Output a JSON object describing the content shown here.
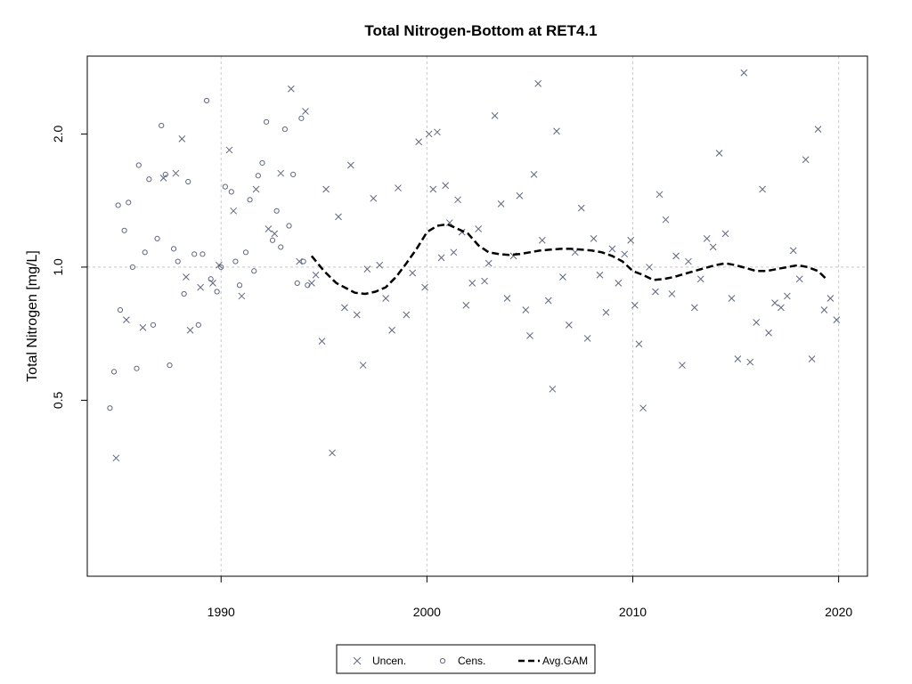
{
  "chart_data": {
    "type": "scatter",
    "title": "Total Nitrogen-Bottom at RET4.1",
    "xlabel": "",
    "ylabel": "Total Nitrogen [mg/L]",
    "xlim": [
      1983.5,
      2021.4
    ],
    "ylim": [
      0.2,
      3.0
    ],
    "y_scale": "log",
    "x_ticks": [
      1990,
      2000,
      2010,
      2020
    ],
    "x_tick_labels": [
      "1990",
      "2000",
      "2010",
      "2020"
    ],
    "y_ticks": [
      0.5,
      1.0,
      2.0
    ],
    "y_tick_labels": [
      "0.5",
      "1.0",
      "2.0"
    ],
    "grid": true,
    "legend": {
      "position": "bottom",
      "entries": [
        {
          "label": "Uncen.",
          "symbol": "x"
        },
        {
          "label": "Cens.",
          "symbol": "circle"
        },
        {
          "label": "Avg.GAM",
          "symbol": "dashed-line"
        }
      ]
    },
    "colors": {
      "points": "#606880",
      "gam": "#000000",
      "grid": "#c8c8c8",
      "axis": "#000000"
    },
    "series": [
      {
        "name": "Uncen.",
        "marker": "x",
        "x": [
          1984.9,
          1985.4,
          1986.2,
          1987.2,
          1987.8,
          1988.1,
          1988.3,
          1988.5,
          1989.0,
          1989.6,
          1989.9,
          1990.4,
          1990.6,
          1991.0,
          1991.7,
          1992.3,
          1992.6,
          1992.9,
          1993.4,
          1993.8,
          1994.1,
          1994.4,
          1994.6,
          1994.9,
          1995.1,
          1995.4,
          1995.7,
          1996.0,
          1996.3,
          1996.6,
          1996.9,
          1997.1,
          1997.4,
          1997.7,
          1998.0,
          1998.3,
          1998.6,
          1999.0,
          1999.3,
          1999.6,
          1999.9,
          2000.1,
          2000.3,
          2000.5,
          2000.7,
          2000.9,
          2001.1,
          2001.3,
          2001.5,
          2001.7,
          2001.9,
          2002.2,
          2002.5,
          2002.8,
          2003.0,
          2003.3,
          2003.6,
          2003.9,
          2004.2,
          2004.5,
          2004.8,
          2005.0,
          2005.2,
          2005.4,
          2005.6,
          2005.9,
          2006.1,
          2006.3,
          2006.6,
          2006.9,
          2007.2,
          2007.5,
          2007.8,
          2008.1,
          2008.4,
          2008.7,
          2009.0,
          2009.3,
          2009.6,
          2009.9,
          2010.1,
          2010.3,
          2010.5,
          2010.8,
          2011.1,
          2011.3,
          2011.6,
          2011.9,
          2012.1,
          2012.4,
          2012.7,
          2013.0,
          2013.3,
          2013.6,
          2013.9,
          2014.2,
          2014.5,
          2014.8,
          2015.1,
          2015.4,
          2015.7,
          2016.0,
          2016.3,
          2016.6,
          2016.9,
          2017.2,
          2017.5,
          2017.8,
          2018.1,
          2018.4,
          2018.7,
          2019.0,
          2019.3,
          2019.6,
          2019.9
        ],
        "values": [
          0.37,
          0.76,
          0.73,
          1.59,
          1.63,
          1.95,
          0.95,
          0.72,
          0.9,
          0.92,
          1.01,
          1.84,
          1.34,
          0.86,
          1.5,
          1.22,
          1.19,
          1.63,
          2.53,
          1.03,
          2.25,
          0.92,
          0.96,
          0.68,
          1.5,
          0.38,
          1.3,
          0.81,
          1.7,
          0.78,
          0.6,
          0.99,
          1.43,
          1.01,
          0.85,
          0.72,
          1.51,
          0.78,
          0.97,
          1.92,
          0.9,
          2.0,
          1.5,
          2.02,
          1.05,
          1.53,
          1.26,
          1.08,
          1.42,
          1.2,
          0.82,
          0.92,
          1.22,
          0.93,
          1.02,
          2.2,
          1.39,
          0.85,
          1.06,
          1.45,
          0.8,
          0.7,
          1.62,
          2.6,
          1.15,
          0.84,
          0.53,
          2.03,
          0.95,
          0.74,
          1.08,
          1.36,
          0.69,
          1.16,
          0.96,
          0.79,
          1.1,
          0.92,
          1.07,
          1.15,
          0.82,
          0.67,
          0.48,
          1.0,
          0.88,
          1.46,
          1.28,
          0.87,
          1.06,
          0.6,
          1.03,
          0.81,
          0.94,
          1.16,
          1.11,
          1.81,
          1.19,
          0.85,
          0.62,
          2.75,
          0.61,
          0.75,
          1.5,
          0.71,
          0.83,
          0.81,
          0.86,
          1.09,
          0.94,
          1.75,
          0.62,
          2.05,
          0.8,
          0.85,
          0.76
        ]
      },
      {
        "name": "Cens.",
        "marker": "circle",
        "x": [
          1984.6,
          1984.8,
          1985.0,
          1985.1,
          1985.3,
          1985.5,
          1985.7,
          1985.9,
          1986.0,
          1986.3,
          1986.5,
          1986.7,
          1986.9,
          1987.1,
          1987.3,
          1987.5,
          1987.7,
          1987.9,
          1988.2,
          1988.4,
          1988.7,
          1988.9,
          1989.1,
          1989.3,
          1989.5,
          1989.8,
          1990.0,
          1990.2,
          1990.5,
          1990.7,
          1990.9,
          1991.2,
          1991.4,
          1991.6,
          1991.8,
          1992.0,
          1992.2,
          1992.5,
          1992.7,
          1992.9,
          1993.1,
          1993.3,
          1993.5,
          1993.7,
          1993.9,
          1994.0,
          1994.2
        ],
        "values": [
          0.48,
          0.58,
          1.38,
          0.8,
          1.21,
          1.4,
          1.0,
          0.59,
          1.7,
          1.08,
          1.58,
          0.74,
          1.16,
          2.09,
          1.62,
          0.6,
          1.1,
          1.03,
          0.87,
          1.56,
          1.07,
          0.74,
          1.07,
          2.38,
          0.94,
          0.88,
          1.0,
          1.52,
          1.48,
          1.03,
          0.91,
          1.08,
          1.42,
          0.98,
          1.61,
          1.72,
          2.13,
          1.15,
          1.34,
          1.11,
          2.05,
          1.24,
          1.62,
          0.92,
          2.17,
          1.03,
          0.91
        ]
      },
      {
        "name": "Avg.GAM",
        "marker": "dashed-line",
        "x": [
          1994.4,
          1995.0,
          1995.6,
          1996.0,
          1996.5,
          1997.0,
          1997.5,
          1998.0,
          1998.5,
          1999.0,
          1999.5,
          2000.0,
          2000.5,
          2001.0,
          2001.5,
          2002.0,
          2002.5,
          2003.0,
          2003.5,
          2004.0,
          2004.5,
          2005.0,
          2005.5,
          2006.0,
          2006.5,
          2007.0,
          2007.5,
          2008.0,
          2008.5,
          2009.0,
          2009.5,
          2010.0,
          2010.5,
          2011.0,
          2011.5,
          2012.0,
          2012.5,
          2013.0,
          2013.5,
          2014.0,
          2014.5,
          2015.0,
          2015.5,
          2016.0,
          2016.5,
          2017.0,
          2017.5,
          2018.0,
          2018.5,
          2019.0,
          2019.4
        ],
        "values": [
          1.06,
          0.98,
          0.92,
          0.9,
          0.875,
          0.87,
          0.88,
          0.9,
          0.95,
          1.02,
          1.1,
          1.2,
          1.24,
          1.25,
          1.22,
          1.19,
          1.12,
          1.08,
          1.07,
          1.065,
          1.07,
          1.08,
          1.09,
          1.095,
          1.1,
          1.1,
          1.095,
          1.09,
          1.08,
          1.06,
          1.03,
          0.98,
          0.96,
          0.935,
          0.94,
          0.95,
          0.965,
          0.98,
          0.995,
          1.01,
          1.02,
          1.01,
          0.995,
          0.98,
          0.98,
          0.99,
          1.0,
          1.01,
          1.0,
          0.98,
          0.94
        ]
      }
    ]
  }
}
